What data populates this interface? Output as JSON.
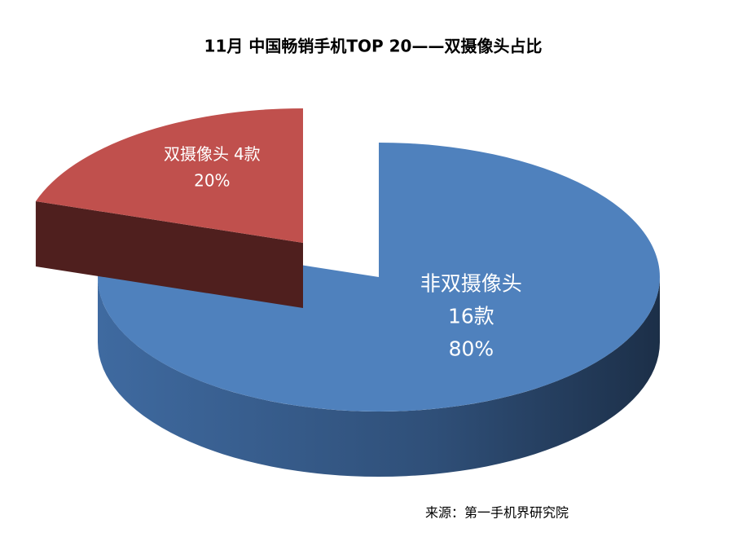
{
  "chart_data": {
    "type": "pie",
    "title": "11月 中国畅销手机TOP 20——双摄像头占比",
    "categories": [
      "双摄像头",
      "非双摄像头"
    ],
    "values": [
      20,
      80
    ],
    "value_labels": [
      "20%",
      "80%"
    ],
    "counts": [
      4,
      16
    ],
    "count_labels": [
      "4款",
      "16款"
    ],
    "colors": [
      "#c0504d",
      "#4f81bd"
    ],
    "source": "来源：第一手机界研究院"
  }
}
